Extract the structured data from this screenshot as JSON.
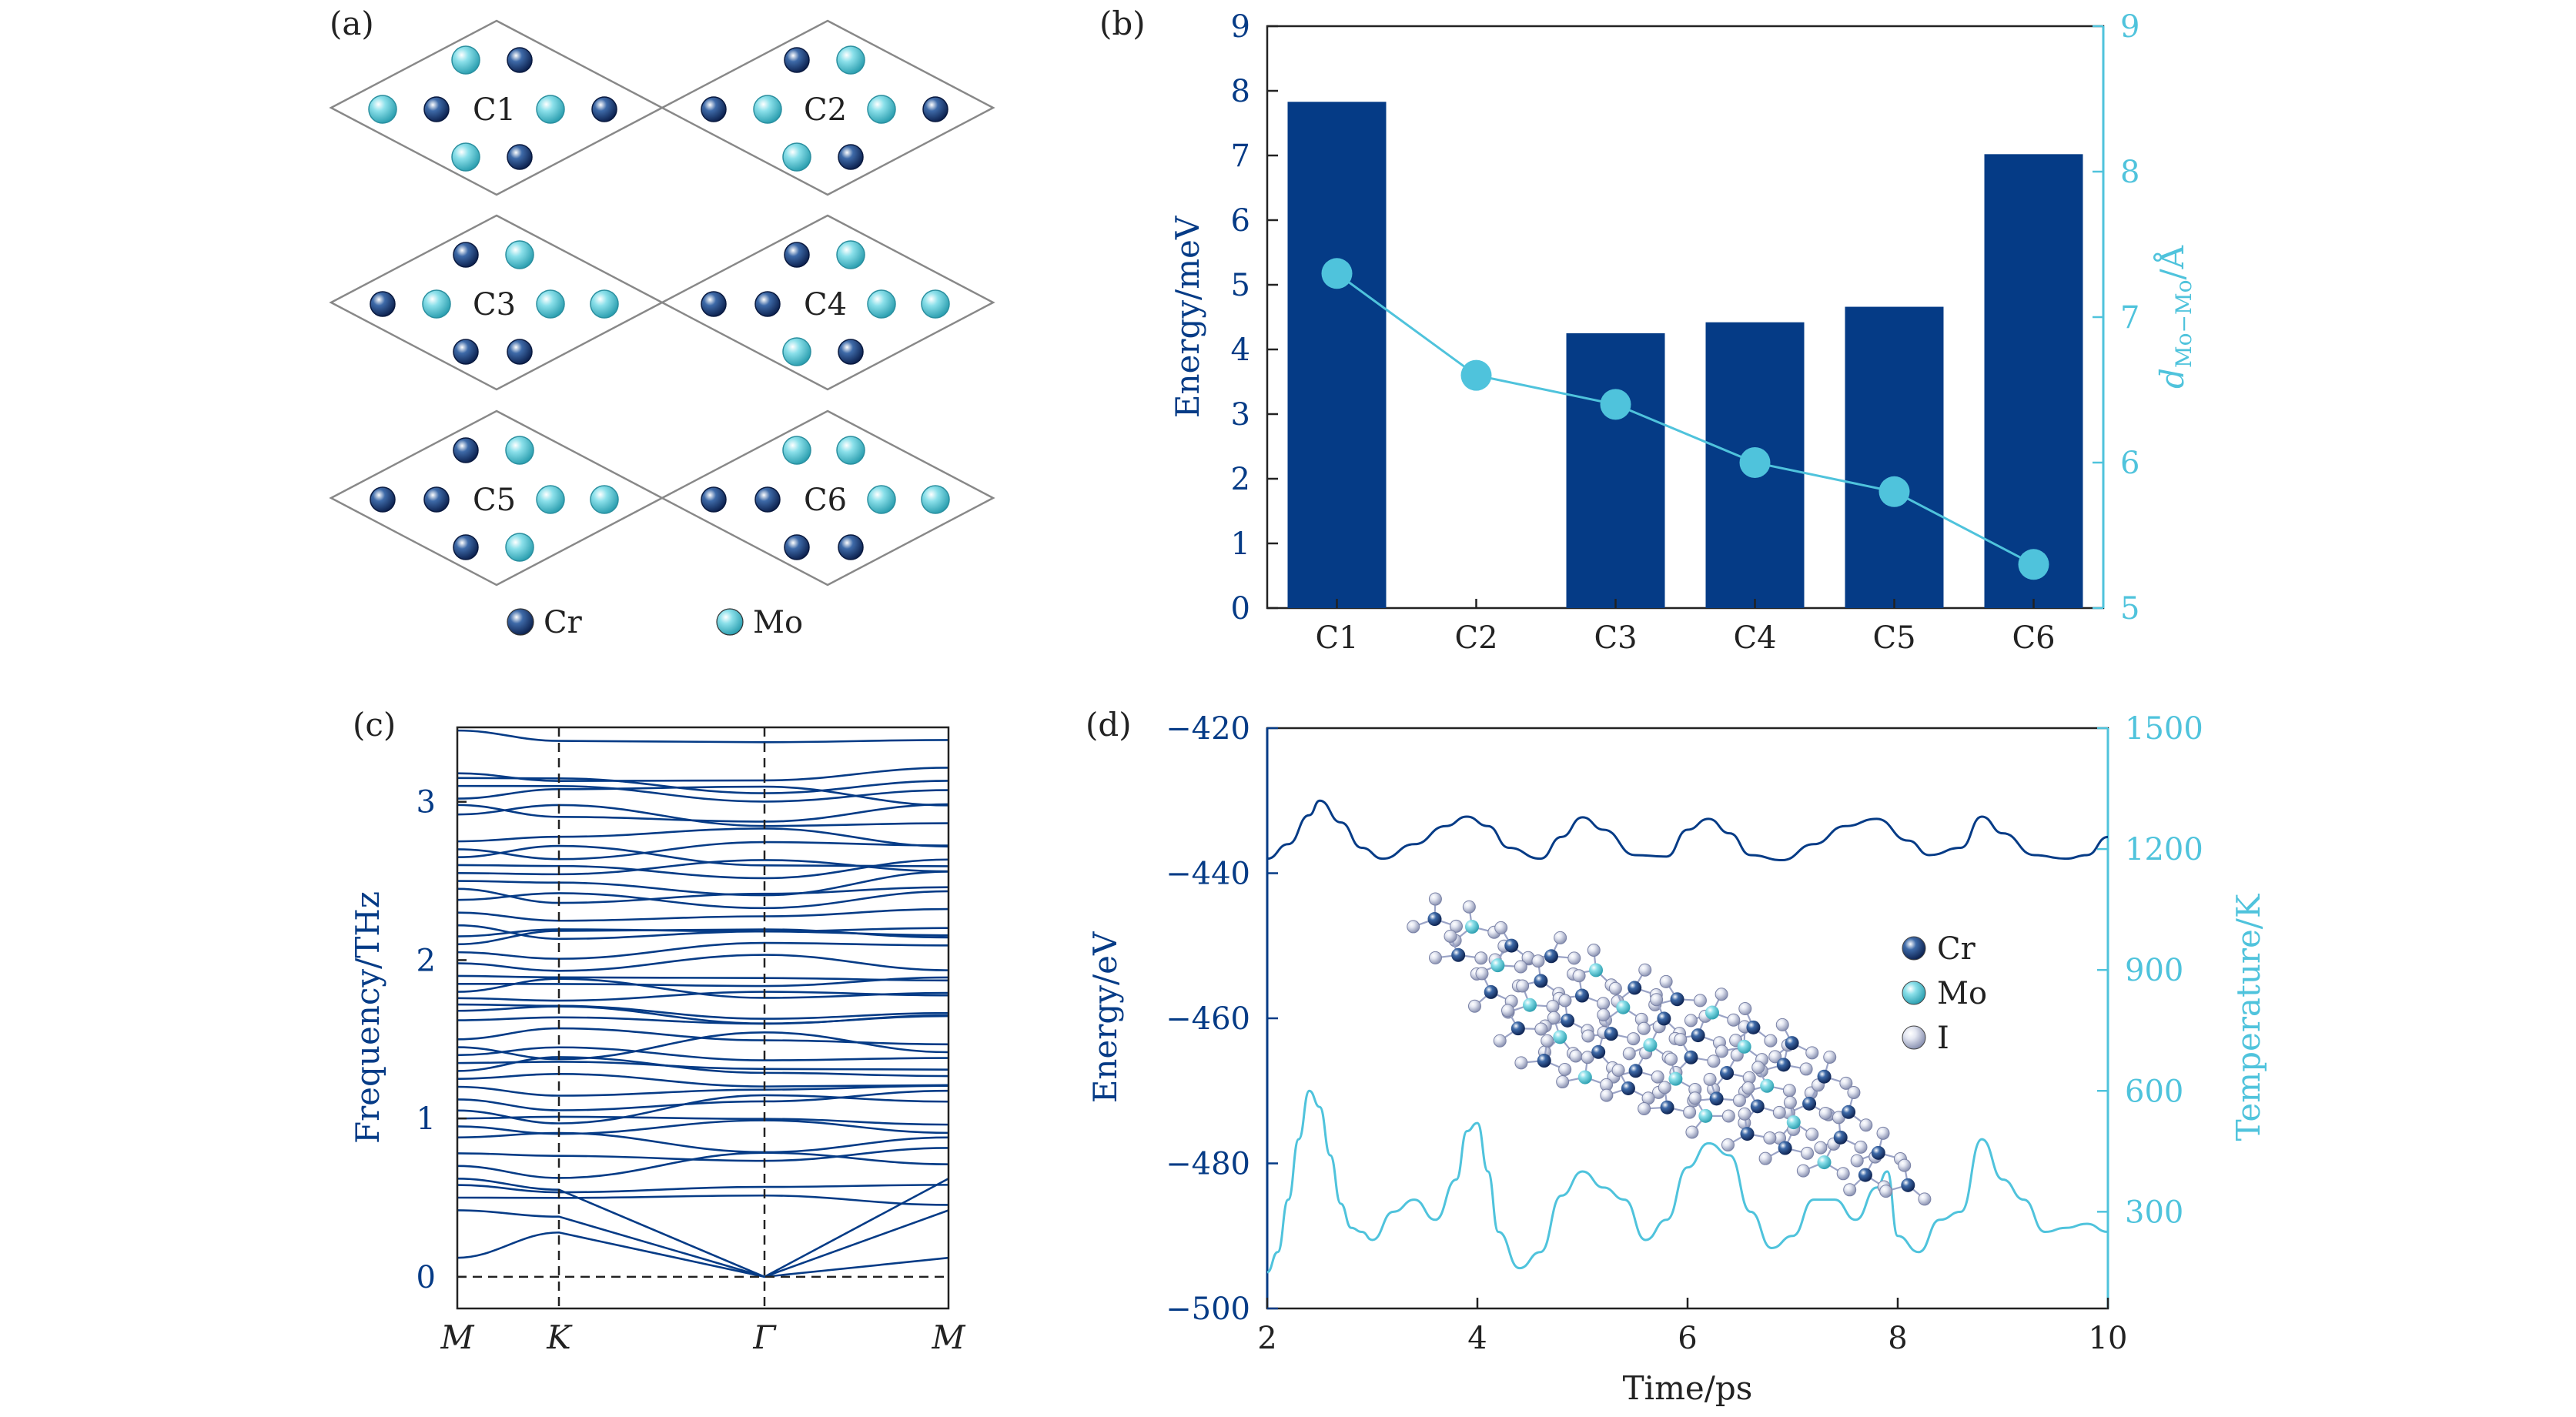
{
  "panel_a": {
    "label": "(a)",
    "configs": [
      "C1",
      "C2",
      "C3",
      "C4",
      "C5",
      "C6"
    ],
    "legend": [
      {
        "name": "Cr",
        "color": "#1f3d7a"
      },
      {
        "name": "Mo",
        "color": "#5cc5d3"
      }
    ]
  },
  "panel_d_inset_legend": [
    {
      "name": "Cr",
      "color": "#1f3d7a"
    },
    {
      "name": "Mo",
      "color": "#34b8c4"
    },
    {
      "name": "I",
      "color": "#b8bfd8"
    }
  ],
  "colors": {
    "navy": "#053b86",
    "cyan": "#4fc3dc",
    "grey": "#555555"
  },
  "chart_data": [
    {
      "panel": "(b)",
      "type": "bar",
      "categories": [
        "C1",
        "C2",
        "C3",
        "C4",
        "C5",
        "C6"
      ],
      "series": [
        {
          "axis": "left",
          "type": "bar",
          "values": [
            7.83,
            0.0,
            4.25,
            4.42,
            4.66,
            7.02
          ]
        },
        {
          "axis": "right",
          "type": "line",
          "values": [
            7.3,
            6.6,
            6.4,
            6.0,
            5.8,
            5.3
          ]
        }
      ],
      "ylabel": "Energy/meV",
      "ylabel_right": "d",
      "ylabel_right_sub": "Mo−Mo",
      "ylabel_right_unit": "/Å",
      "ylim": [
        0,
        9
      ],
      "ylim_right": [
        5,
        9
      ],
      "yticks": [
        0,
        1,
        2,
        3,
        4,
        5,
        6,
        7,
        8,
        9
      ],
      "yticks_right": [
        5,
        6,
        7,
        8,
        9
      ]
    },
    {
      "panel": "(c)",
      "type": "line",
      "ylabel": "Frequency/THz",
      "xticks": [
        "M",
        "K",
        "Γ",
        "M"
      ],
      "yticks": [
        0,
        1,
        2,
        3
      ],
      "ylim": [
        -0.2,
        3.47
      ]
    },
    {
      "panel": "(d)",
      "type": "line",
      "xlabel": "Time/ps",
      "ylabel": "Energy/eV",
      "ylabel_right": "Temperature/K",
      "xlim": [
        2,
        10
      ],
      "ylim": [
        -500,
        -420
      ],
      "ylim_right": [
        60,
        1500
      ],
      "xticks": [
        2,
        4,
        6,
        8,
        10
      ],
      "yticks": [
        -500,
        -480,
        -460,
        -440,
        -420
      ],
      "yticks_right": [
        300,
        600,
        900,
        1200,
        1500
      ],
      "energy": {
        "t": [
          2,
          2.2,
          2.4,
          2.5,
          2.7,
          2.9,
          3.1,
          3.4,
          3.7,
          3.9,
          4.1,
          4.3,
          4.6,
          4.8,
          5.0,
          5.2,
          5.5,
          5.8,
          6.0,
          6.2,
          6.4,
          6.6,
          6.9,
          7.2,
          7.5,
          7.8,
          8.1,
          8.3,
          8.6,
          8.8,
          9.0,
          9.3,
          9.6,
          9.8,
          10.0
        ],
        "E": [
          -438,
          -436,
          -432,
          -430,
          -433,
          -436.5,
          -438,
          -436,
          -433.5,
          -432.2,
          -433.5,
          -436.5,
          -438,
          -435,
          -432.3,
          -434,
          -437.5,
          -437.7,
          -434,
          -432.5,
          -434.5,
          -437.5,
          -438.2,
          -436,
          -433.5,
          -432.5,
          -435.5,
          -437.5,
          -436.5,
          -432.2,
          -434.5,
          -437.5,
          -438,
          -437.5,
          -435
        ]
      },
      "temperature": {
        "t": [
          2,
          2.1,
          2.2,
          2.3,
          2.4,
          2.5,
          2.6,
          2.7,
          2.8,
          2.9,
          3.0,
          3.2,
          3.4,
          3.6,
          3.8,
          3.9,
          4.0,
          4.1,
          4.2,
          4.4,
          4.6,
          4.8,
          5.0,
          5.2,
          5.4,
          5.6,
          5.8,
          6.0,
          6.2,
          6.4,
          6.6,
          6.8,
          7.0,
          7.2,
          7.4,
          7.6,
          7.8,
          7.9,
          8.0,
          8.2,
          8.4,
          8.6,
          8.8,
          9.0,
          9.2,
          9.4,
          9.6,
          9.8,
          10.0
        ],
        "T": [
          150,
          200,
          330,
          480,
          600,
          560,
          440,
          320,
          260,
          250,
          230,
          300,
          330,
          280,
          380,
          500,
          520,
          400,
          250,
          160,
          200,
          340,
          400,
          360,
          330,
          230,
          280,
          410,
          470,
          440,
          300,
          210,
          240,
          330,
          330,
          280,
          360,
          400,
          240,
          200,
          280,
          300,
          480,
          380,
          330,
          250,
          260,
          270,
          250
        ]
      }
    }
  ]
}
